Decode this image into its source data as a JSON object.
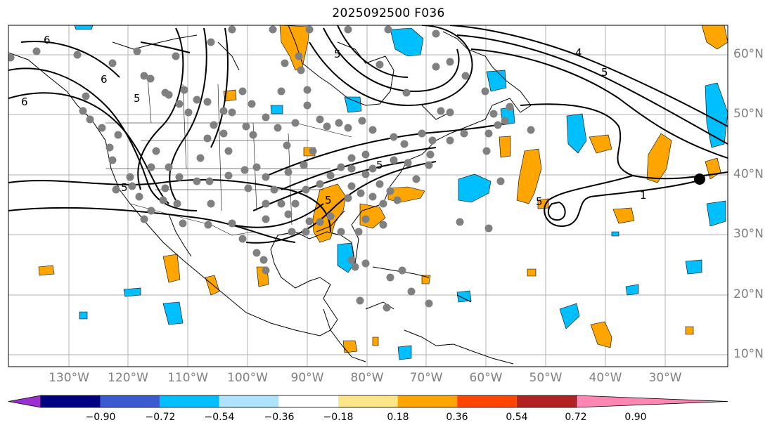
{
  "title": "2025092500 F036",
  "map": {
    "projection": "lat-lon",
    "lat_labels": [
      "60°N",
      "50°N",
      "40°N",
      "30°N",
      "20°N",
      "10°N"
    ],
    "lon_labels": [
      "130°W",
      "120°W",
      "110°W",
      "100°W",
      "90°W",
      "80°W",
      "70°W",
      "60°W",
      "50°W",
      "40°W",
      "30°W"
    ],
    "contour_labels": [
      "6",
      "6",
      "6",
      "5",
      "5",
      "5",
      "5",
      "4",
      "5",
      "1",
      "5",
      "5"
    ],
    "colors": {
      "positive": "#ffa500",
      "negative": "#00bfff",
      "station": "#808080",
      "contour": "#000000",
      "grid": "#b0b0b0"
    }
  },
  "colorbar": {
    "ticks": [
      "−0.90",
      "−0.72",
      "−0.54",
      "−0.36",
      "−0.18",
      "0.18",
      "0.36",
      "0.54",
      "0.72",
      "0.90"
    ],
    "colors": [
      "#9b30d0",
      "#000080",
      "#3a5bd0",
      "#00bfff",
      "#aee3fb",
      "#ffffff",
      "#fde68a",
      "#ffa500",
      "#ff4500",
      "#b22222",
      "#ff85b3"
    ]
  }
}
